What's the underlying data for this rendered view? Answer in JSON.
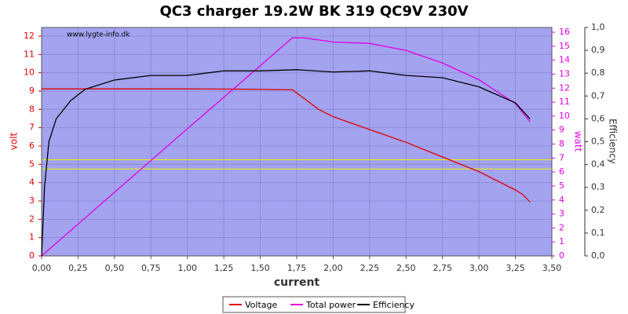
{
  "chart_data": {
    "type": "line",
    "title": "QC3 charger 19.2W BK 319 QC9V 230V",
    "watermark": "www.lygte-info.dk",
    "xlabel": "current",
    "ylabel": "volt",
    "y2label": "watt",
    "y3label": "Efficiency",
    "xlim": [
      0,
      3.5
    ],
    "xticks": [
      {
        "value": 0,
        "label": "0,00"
      },
      {
        "value": 0.25,
        "label": "0,25"
      },
      {
        "value": 0.5,
        "label": "0,50"
      },
      {
        "value": 0.75,
        "label": "0,75"
      },
      {
        "value": 1,
        "label": "1,00"
      },
      {
        "value": 1.25,
        "label": "1,25"
      },
      {
        "value": 1.5,
        "label": "1,50"
      },
      {
        "value": 1.75,
        "label": "1,75"
      },
      {
        "value": 2,
        "label": "2,00"
      },
      {
        "value": 2.25,
        "label": "2,25"
      },
      {
        "value": 2.5,
        "label": "2,50"
      },
      {
        "value": 2.75,
        "label": "2,75"
      },
      {
        "value": 3,
        "label": "3,00"
      },
      {
        "value": 3.25,
        "label": "3,25"
      },
      {
        "value": 3.5,
        "label": "3,50"
      }
    ],
    "ylim": [
      0,
      12.47
    ],
    "yticks": [
      0,
      1,
      2,
      3,
      4,
      5,
      6,
      7,
      8,
      9,
      10,
      11,
      12
    ],
    "y2lim": [
      0,
      16.34
    ],
    "y2ticks": [
      0,
      1,
      2,
      3,
      4,
      5,
      6,
      7,
      8,
      9,
      10,
      11,
      12,
      13,
      14,
      15,
      16
    ],
    "y3lim": [
      0,
      1
    ],
    "y3ticks": [
      {
        "value": 0,
        "label": "0,0"
      },
      {
        "value": 0.1,
        "label": "0,1"
      },
      {
        "value": 0.2,
        "label": "0,2"
      },
      {
        "value": 0.3,
        "label": "0,3"
      },
      {
        "value": 0.4,
        "label": "0,4"
      },
      {
        "value": 0.5,
        "label": "0,5"
      },
      {
        "value": 0.6,
        "label": "0,6"
      },
      {
        "value": 0.7,
        "label": "0,7"
      },
      {
        "value": 0.8,
        "label": "0,8"
      },
      {
        "value": 0.9,
        "label": "0,9"
      },
      {
        "value": 1,
        "label": "1,0"
      }
    ],
    "grid": true,
    "reference_lines": [
      5.25,
      4.75
    ],
    "reference_color": "#f0f000",
    "series": [
      {
        "name": "Voltage",
        "color": "#e00000",
        "axis": "y",
        "x": [
          0,
          0.5,
          1.0,
          1.4,
          1.72,
          1.8,
          1.9,
          2.0,
          2.25,
          2.5,
          2.75,
          3.0,
          3.25,
          3.3,
          3.35
        ],
        "values": [
          9.12,
          9.12,
          9.12,
          9.1,
          9.07,
          8.6,
          8.0,
          7.6,
          6.9,
          6.2,
          5.4,
          4.6,
          3.6,
          3.35,
          2.95
        ]
      },
      {
        "name": "Total power",
        "color": "#e000e0",
        "axis": "y2",
        "x": [
          0,
          0.5,
          1.0,
          1.5,
          1.72,
          1.8,
          2.0,
          2.25,
          2.5,
          2.75,
          3.0,
          3.25,
          3.35
        ],
        "values": [
          0,
          4.55,
          9.1,
          13.6,
          15.6,
          15.6,
          15.3,
          15.2,
          14.7,
          13.8,
          12.6,
          10.9,
          9.6
        ]
      },
      {
        "name": "Efficiency",
        "color": "#000000",
        "axis": "y3",
        "x": [
          0,
          0.02,
          0.05,
          0.1,
          0.2,
          0.3,
          0.4,
          0.5,
          0.75,
          1.0,
          1.25,
          1.5,
          1.75,
          2.0,
          2.25,
          2.5,
          2.75,
          3.0,
          3.25,
          3.35
        ],
        "values": [
          0,
          0.3,
          0.5,
          0.6,
          0.68,
          0.73,
          0.75,
          0.77,
          0.79,
          0.79,
          0.81,
          0.81,
          0.815,
          0.805,
          0.81,
          0.79,
          0.78,
          0.74,
          0.67,
          0.6
        ]
      }
    ]
  }
}
